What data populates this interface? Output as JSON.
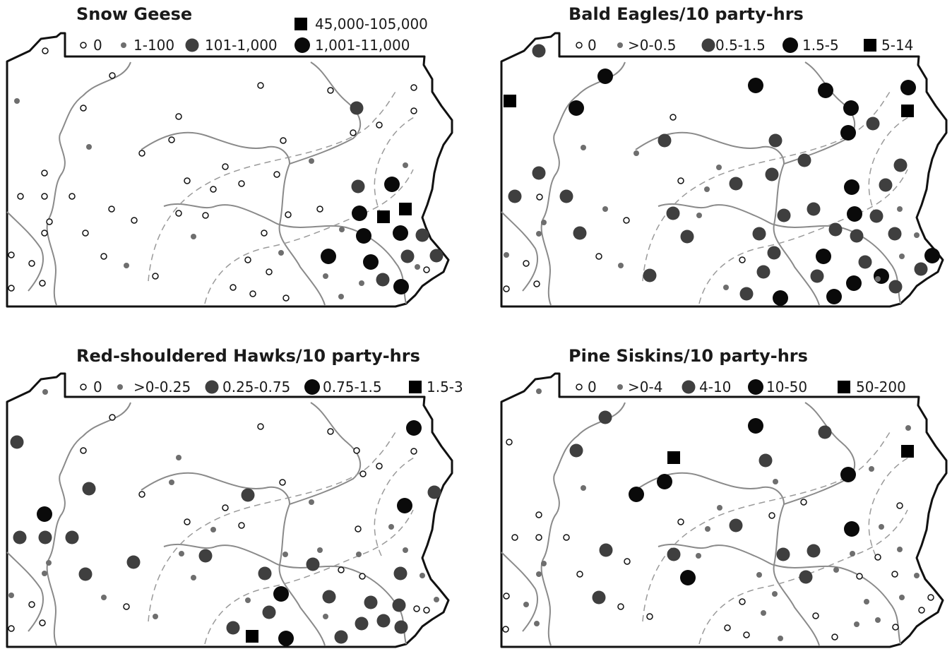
{
  "colors": {
    "zero_fill": "#ffffff",
    "small": "#6e6e6e",
    "medium": "#3f3f3f",
    "large": "#0a0a0a",
    "square": "#000000"
  },
  "panels": [
    {
      "id": "snow-geese",
      "title": "Snow Geese",
      "legend": [
        {
          "symbol": "open",
          "label": "0"
        },
        {
          "symbol": "small",
          "label": "1-100"
        },
        {
          "symbol": "medium",
          "label": "101-1,000"
        },
        {
          "symbol": "large",
          "label": "1,001-11,000"
        },
        {
          "symbol": "square",
          "label": "45,000-105,000"
        }
      ]
    },
    {
      "id": "bald-eagles",
      "title": "Bald Eagles/10 party-hrs",
      "legend": [
        {
          "symbol": "open",
          "label": "0"
        },
        {
          "symbol": "small",
          "label": ">0-0.5"
        },
        {
          "symbol": "medium",
          "label": "0.5-1.5"
        },
        {
          "symbol": "large",
          "label": "1.5-5"
        },
        {
          "symbol": "square",
          "label": "5-14"
        }
      ]
    },
    {
      "id": "red-shouldered-hawks",
      "title": "Red-shouldered Hawks/10 party-hrs",
      "legend": [
        {
          "symbol": "open",
          "label": "0"
        },
        {
          "symbol": "small",
          "label": ">0-0.25"
        },
        {
          "symbol": "medium",
          "label": "0.25-0.75"
        },
        {
          "symbol": "large",
          "label": "0.75-1.5"
        },
        {
          "symbol": "square",
          "label": "1.5-3"
        }
      ]
    },
    {
      "id": "pine-siskins",
      "title": "Pine Siskins/10 party-hrs",
      "legend": [
        {
          "symbol": "open",
          "label": "0"
        },
        {
          "symbol": "small",
          "label": ">0-4"
        },
        {
          "symbol": "medium",
          "label": "4-10"
        },
        {
          "symbol": "large",
          "label": "10-50"
        },
        {
          "symbol": "square",
          "label": "50-200"
        }
      ]
    }
  ]
}
